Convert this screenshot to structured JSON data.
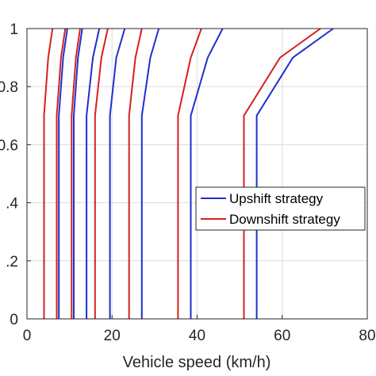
{
  "chart_data": {
    "type": "line",
    "title": "",
    "xlabel": "Vehicle speed (km/h)",
    "ylabel": "",
    "xlim": [
      0,
      80
    ],
    "ylim": [
      0,
      1
    ],
    "x_ticks": [
      {
        "value": 0,
        "label": "0"
      },
      {
        "value": 20,
        "label": "20"
      },
      {
        "value": 40,
        "label": "40"
      },
      {
        "value": 60,
        "label": "60"
      },
      {
        "value": 80,
        "label": "80"
      }
    ],
    "y_ticks": [
      {
        "value": 0,
        "label": "0"
      },
      {
        "value": 0.2,
        "label": ".2"
      },
      {
        "value": 0.4,
        "label": ".4"
      },
      {
        "value": 0.6,
        "label": "0.6"
      },
      {
        "value": 0.8,
        "label": "0.8"
      },
      {
        "value": 1,
        "label": "1"
      }
    ],
    "grid": true,
    "legend_position": "center-right",
    "legend": [
      {
        "label": "Upshift strategy",
        "color": "#1f2fcc"
      },
      {
        "label": "Downshift strategy",
        "color": "#d62020"
      }
    ],
    "series": [
      {
        "group": "upshift",
        "color": "#1f2fcc",
        "lines": [
          [
            [
              7.5,
              0
            ],
            [
              7.5,
              0.7
            ],
            [
              8.5,
              0.9
            ],
            [
              9.5,
              1.0
            ]
          ],
          [
            [
              11,
              0
            ],
            [
              11,
              0.7
            ],
            [
              12,
              0.9
            ],
            [
              13,
              1.0
            ]
          ],
          [
            [
              14,
              0
            ],
            [
              14,
              0.7
            ],
            [
              15.5,
              0.9
            ],
            [
              17,
              1.0
            ]
          ],
          [
            [
              19.5,
              0
            ],
            [
              19.5,
              0.7
            ],
            [
              21,
              0.9
            ],
            [
              23,
              1.0
            ]
          ],
          [
            [
              27,
              0
            ],
            [
              27,
              0.7
            ],
            [
              29,
              0.9
            ],
            [
              31,
              1.0
            ]
          ],
          [
            [
              38.5,
              0
            ],
            [
              38.5,
              0.7
            ],
            [
              42.5,
              0.9
            ],
            [
              46,
              1.0
            ]
          ],
          [
            [
              54,
              0
            ],
            [
              54,
              0.7
            ],
            [
              62.5,
              0.9
            ],
            [
              72,
              1.0
            ]
          ]
        ]
      },
      {
        "group": "downshift",
        "color": "#d62020",
        "lines": [
          [
            [
              4,
              0
            ],
            [
              4,
              0.7
            ],
            [
              5,
              0.9
            ],
            [
              6,
              1.0
            ]
          ],
          [
            [
              7,
              0
            ],
            [
              7,
              0.7
            ],
            [
              8,
              0.9
            ],
            [
              9,
              1.0
            ]
          ],
          [
            [
              10.5,
              0
            ],
            [
              10.5,
              0.7
            ],
            [
              11.5,
              0.9
            ],
            [
              12.5,
              1.0
            ]
          ],
          [
            [
              16,
              0
            ],
            [
              16,
              0.7
            ],
            [
              17.5,
              0.9
            ],
            [
              19,
              1.0
            ]
          ],
          [
            [
              24,
              0
            ],
            [
              24,
              0.7
            ],
            [
              25.5,
              0.9
            ],
            [
              27,
              1.0
            ]
          ],
          [
            [
              35.5,
              0
            ],
            [
              35.5,
              0.7
            ],
            [
              38.5,
              0.9
            ],
            [
              41,
              1.0
            ]
          ],
          [
            [
              51,
              0
            ],
            [
              51,
              0.7
            ],
            [
              59.5,
              0.9
            ],
            [
              69,
              1.0
            ]
          ]
        ]
      }
    ]
  }
}
